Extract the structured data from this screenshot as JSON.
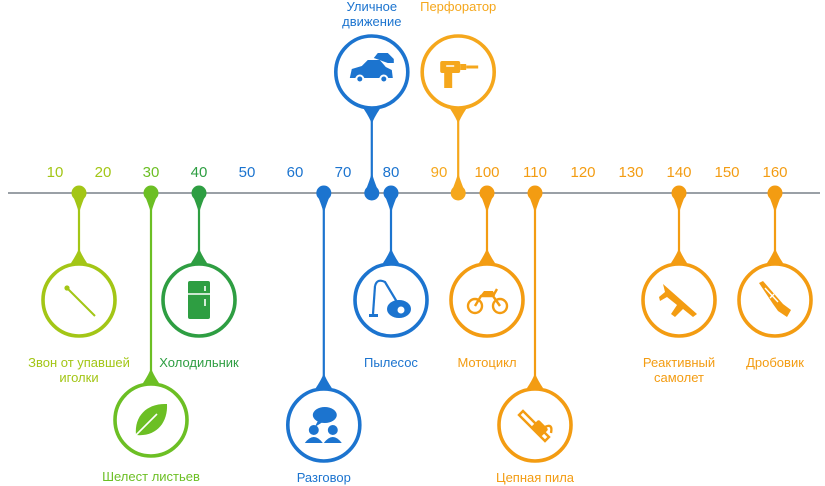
{
  "scale": {
    "ticks": [
      10,
      20,
      30,
      40,
      50,
      60,
      70,
      80,
      90,
      100,
      110,
      120,
      130,
      140,
      150,
      160
    ],
    "tick_colors": [
      "#a3c616",
      "#a3c616",
      "#6cbf24",
      "#2e9e42",
      "#1c74cf",
      "#1c74cf",
      "#1c74cf",
      "#1c74cf",
      "#f5a71c",
      "#f39c12",
      "#f39c12",
      "#f39c12",
      "#f39c12",
      "#f39c12",
      "#f39c12",
      "#f39c12"
    ]
  },
  "events": [
    {
      "id": "needle",
      "value": 15,
      "label_lines": [
        "Звон от упавшей",
        "иголки"
      ],
      "color": "#a3c616",
      "icon": "needle-icon",
      "side": "below"
    },
    {
      "id": "leaves",
      "value": 30,
      "label_lines": [
        "Шелест листьев"
      ],
      "color": "#6cbf24",
      "icon": "leaf-icon",
      "side": "below"
    },
    {
      "id": "fridge",
      "value": 40,
      "label_lines": [
        "Холодильник"
      ],
      "color": "#2e9e42",
      "icon": "fridge-icon",
      "side": "below"
    },
    {
      "id": "talk",
      "value": 66,
      "label_lines": [
        "Разговор"
      ],
      "color": "#1c74cf",
      "icon": "conversation-icon",
      "side": "below"
    },
    {
      "id": "traffic",
      "value": 76,
      "label_lines": [
        "Уличное",
        "движение"
      ],
      "color": "#1c74cf",
      "icon": "cars-icon",
      "side": "above"
    },
    {
      "id": "vacuum",
      "value": 80,
      "label_lines": [
        "Пылесос"
      ],
      "color": "#1c74cf",
      "icon": "vacuum-icon",
      "side": "below"
    },
    {
      "id": "drill",
      "value": 94,
      "label_lines": [
        "Перфоратор"
      ],
      "color": "#f5a71c",
      "icon": "drill-icon",
      "side": "above"
    },
    {
      "id": "moto",
      "value": 100,
      "label_lines": [
        "Мотоцикл"
      ],
      "color": "#f39c12",
      "icon": "motorcycle-icon",
      "side": "below"
    },
    {
      "id": "chainsaw",
      "value": 110,
      "label_lines": [
        "Цепная пила"
      ],
      "color": "#f39c12",
      "icon": "chainsaw-icon",
      "side": "below"
    },
    {
      "id": "jet",
      "value": 140,
      "label_lines": [
        "Реактивный",
        "самолет"
      ],
      "color": "#f39c12",
      "icon": "jet-icon",
      "side": "below"
    },
    {
      "id": "shotgun",
      "value": 160,
      "label_lines": [
        "Дробовик"
      ],
      "color": "#f39c12",
      "icon": "shotgun-icon",
      "side": "below"
    }
  ]
}
